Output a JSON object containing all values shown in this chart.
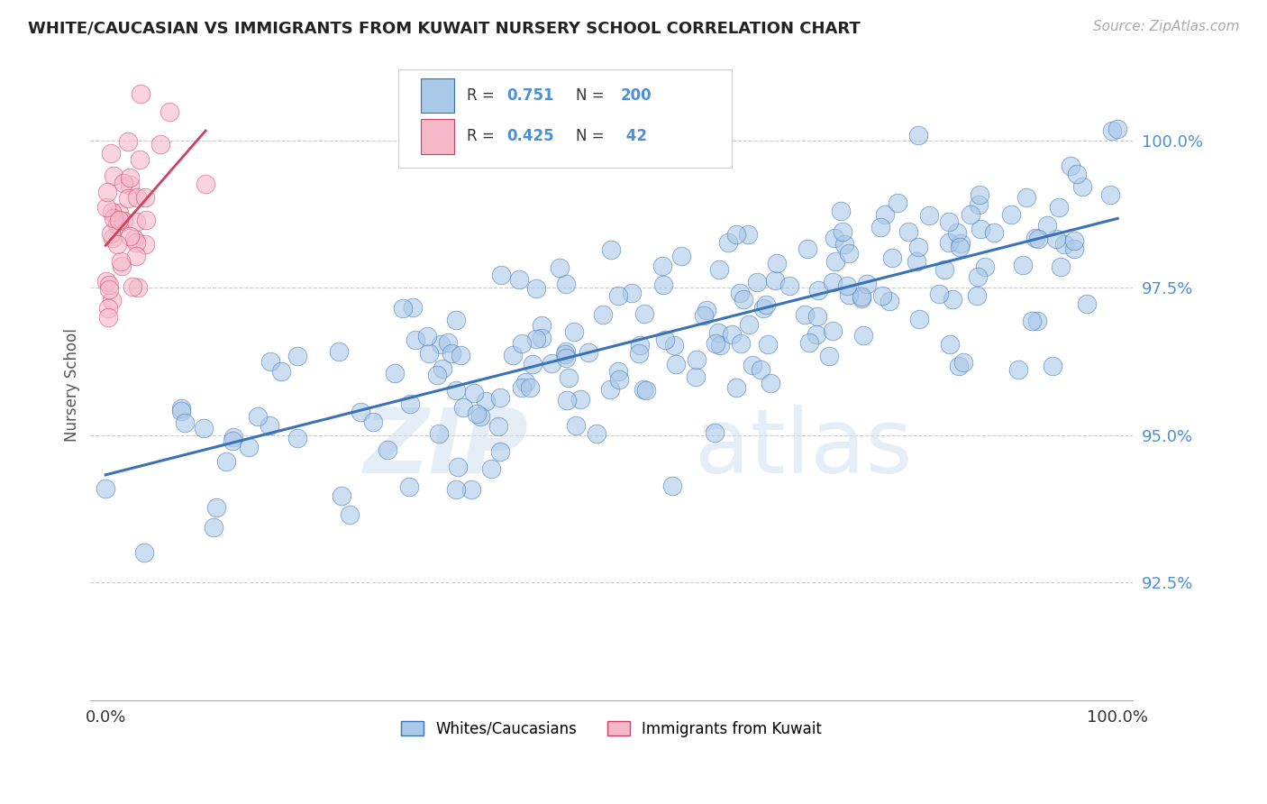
{
  "title": "WHITE/CAUCASIAN VS IMMIGRANTS FROM KUWAIT NURSERY SCHOOL CORRELATION CHART",
  "source": "Source: ZipAtlas.com",
  "ylabel": "Nursery School",
  "legend1_label": "Whites/Caucasians",
  "legend2_label": "Immigrants from Kuwait",
  "R1": 0.751,
  "N1": 200,
  "R2": 0.425,
  "N2": 42,
  "blue_color": "#aac8e8",
  "pink_color": "#f5b8c8",
  "line_blue": "#3a72b8",
  "line_pink": "#d04060",
  "watermark_zip": "ZIP",
  "watermark_atlas": "atlas",
  "xlim_min": -0.015,
  "xlim_max": 1.015,
  "ylim_min": 0.905,
  "ylim_max": 1.012,
  "yticks": [
    0.925,
    0.95,
    0.975,
    1.0
  ],
  "ytick_labels": [
    "92.5%",
    "95.0%",
    "97.5%",
    "100.0%"
  ],
  "seed": 7
}
